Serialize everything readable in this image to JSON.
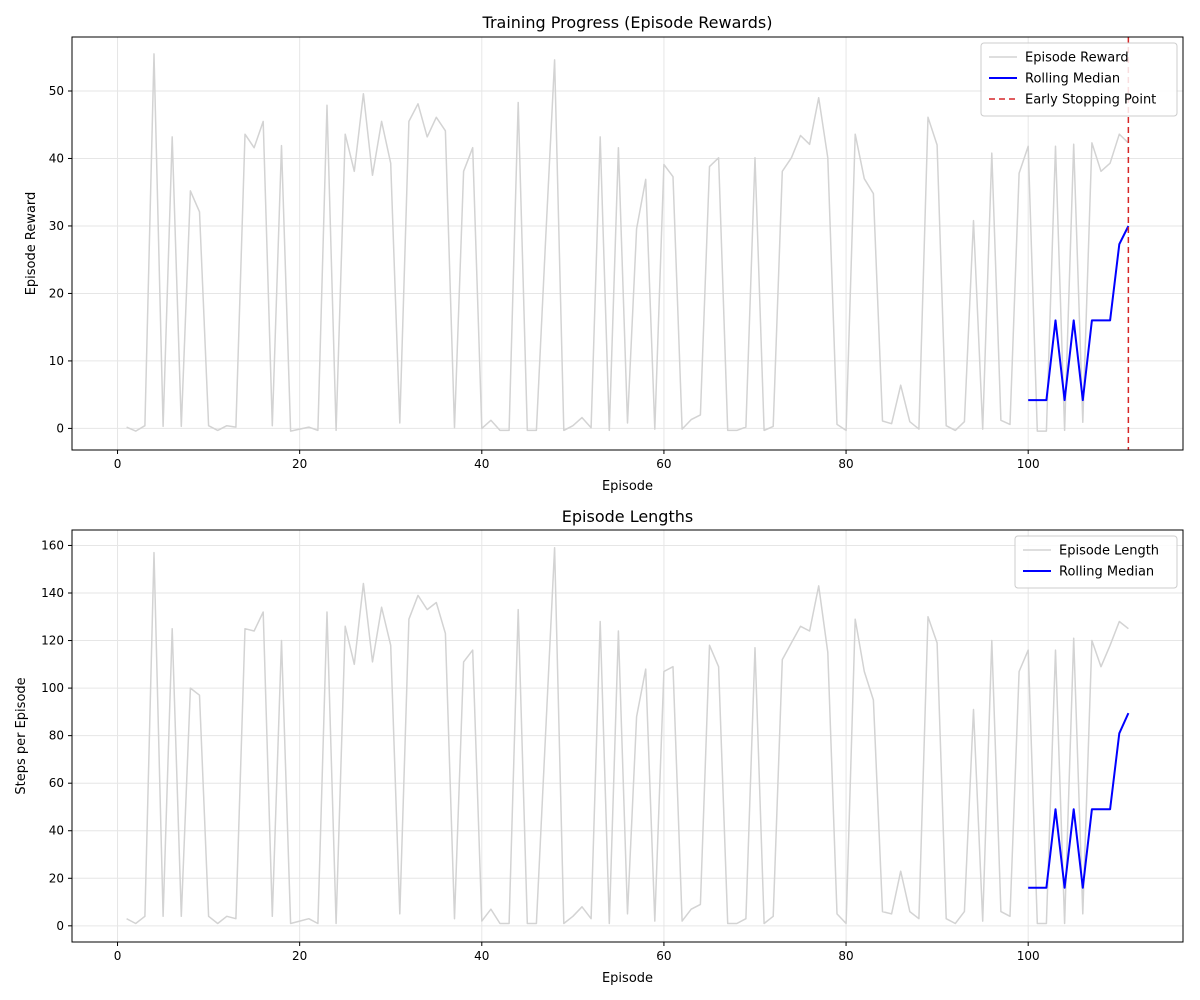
{
  "chart_data": [
    {
      "type": "line",
      "title": "Training Progress (Episode Rewards)",
      "xlabel": "Episode",
      "ylabel": "Episode Reward",
      "xlim": [
        -5,
        117
      ],
      "ylim": [
        -3.2,
        58
      ],
      "xticks": [
        0,
        20,
        40,
        60,
        80,
        100
      ],
      "yticks": [
        0,
        10,
        20,
        30,
        40,
        50
      ],
      "grid": true,
      "legend_position": "top-right",
      "series": [
        {
          "name": "Episode Reward",
          "color": "#d3d3d3",
          "x": [
            1,
            2,
            3,
            4,
            5,
            6,
            7,
            8,
            9,
            10,
            11,
            12,
            13,
            14,
            15,
            16,
            17,
            18,
            19,
            20,
            21,
            22,
            23,
            24,
            25,
            26,
            27,
            28,
            29,
            30,
            31,
            32,
            33,
            34,
            35,
            36,
            37,
            38,
            39,
            40,
            41,
            42,
            43,
            44,
            45,
            46,
            47,
            48,
            49,
            50,
            51,
            52,
            53,
            54,
            55,
            56,
            57,
            58,
            59,
            60,
            61,
            62,
            63,
            64,
            65,
            66,
            67,
            68,
            69,
            70,
            71,
            72,
            73,
            74,
            75,
            76,
            77,
            78,
            79,
            80,
            81,
            82,
            83,
            84,
            85,
            86,
            87,
            88,
            89,
            90,
            91,
            92,
            93,
            94,
            95,
            96,
            97,
            98,
            99,
            100,
            101,
            102,
            103,
            104,
            105,
            106,
            107,
            108,
            109,
            110,
            111
          ],
          "y": [
            0.2,
            -0.4,
            0.4,
            55.5,
            0.3,
            43.2,
            0.3,
            35.2,
            32.1,
            0.4,
            -0.3,
            0.4,
            0.2,
            43.6,
            41.6,
            45.5,
            0.4,
            41.9,
            -0.4,
            -0.1,
            0.2,
            -0.3,
            47.9,
            -0.3,
            43.6,
            38.1,
            49.6,
            37.5,
            45.5,
            39.3,
            0.8,
            45.5,
            48.1,
            43.2,
            46.1,
            44.1,
            0.1,
            38.1,
            41.6,
            0.0,
            1.2,
            -0.3,
            -0.3,
            48.3,
            -0.3,
            -0.3,
            27.6,
            54.6,
            -0.3,
            0.4,
            1.6,
            0.1,
            43.2,
            -0.3,
            41.6,
            0.8,
            29.6,
            36.9,
            -0.1,
            39.1,
            37.3,
            -0.1,
            1.3,
            2.0,
            38.8,
            40.1,
            -0.3,
            -0.3,
            0.2,
            40.1,
            -0.3,
            0.3,
            38.1,
            40.1,
            43.4,
            42.1,
            49.0,
            40.1,
            0.6,
            -0.3,
            43.6,
            37.0,
            34.8,
            1.1,
            0.7,
            6.4,
            1.0,
            -0.1,
            46.1,
            42.0,
            0.4,
            -0.3,
            1.0,
            30.8,
            -0.1,
            40.8,
            1.2,
            0.6,
            37.8,
            41.8,
            -0.4,
            -0.4,
            41.8,
            -0.3,
            42.1,
            0.9,
            42.3,
            38.1,
            39.3,
            43.6,
            42.3
          ]
        },
        {
          "name": "Rolling Median",
          "color": "#0000ff",
          "x": [
            100,
            101,
            102,
            103,
            104,
            105,
            106,
            107,
            108,
            109,
            110,
            111
          ],
          "y": [
            4.2,
            4.2,
            4.2,
            16.0,
            4.2,
            16.0,
            4.2,
            16.0,
            16.0,
            16.0,
            27.3,
            30.0
          ]
        }
      ],
      "vlines": [
        {
          "name": "Early Stopping Point",
          "x": 111,
          "color": "#d62728",
          "dashed": true
        }
      ]
    },
    {
      "type": "line",
      "title": "Episode Lengths",
      "xlabel": "Episode",
      "ylabel": "Steps per Episode",
      "xlim": [
        -5,
        117
      ],
      "ylim": [
        -6.8,
        166.5
      ],
      "xticks": [
        0,
        20,
        40,
        60,
        80,
        100
      ],
      "yticks": [
        0,
        20,
        40,
        60,
        80,
        100,
        120,
        140,
        160
      ],
      "grid": true,
      "legend_position": "top-right",
      "series": [
        {
          "name": "Episode Length",
          "color": "#d3d3d3",
          "x": [
            1,
            2,
            3,
            4,
            5,
            6,
            7,
            8,
            9,
            10,
            11,
            12,
            13,
            14,
            15,
            16,
            17,
            18,
            19,
            20,
            21,
            22,
            23,
            24,
            25,
            26,
            27,
            28,
            29,
            30,
            31,
            32,
            33,
            34,
            35,
            36,
            37,
            38,
            39,
            40,
            41,
            42,
            43,
            44,
            45,
            46,
            47,
            48,
            49,
            50,
            51,
            52,
            53,
            54,
            55,
            56,
            57,
            58,
            59,
            60,
            61,
            62,
            63,
            64,
            65,
            66,
            67,
            68,
            69,
            70,
            71,
            72,
            73,
            74,
            75,
            76,
            77,
            78,
            79,
            80,
            81,
            82,
            83,
            84,
            85,
            86,
            87,
            88,
            89,
            90,
            91,
            92,
            93,
            94,
            95,
            96,
            97,
            98,
            99,
            100,
            101,
            102,
            103,
            104,
            105,
            106,
            107,
            108,
            109,
            110,
            111
          ],
          "y": [
            3,
            1,
            4,
            157,
            4,
            125,
            4,
            100,
            97,
            4,
            1,
            4,
            3,
            125,
            124,
            132,
            4,
            120,
            1,
            2,
            3,
            1,
            132,
            1,
            126,
            110,
            144,
            111,
            134,
            118,
            5,
            129,
            139,
            133,
            136,
            123,
            3,
            111,
            116,
            2,
            7,
            1,
            1,
            133,
            1,
            1,
            80,
            159,
            1,
            4,
            8,
            3,
            128,
            1,
            124,
            5,
            88,
            108,
            2,
            107,
            109,
            2,
            7,
            9,
            118,
            109,
            1,
            1,
            3,
            117,
            1,
            4,
            112,
            119,
            126,
            124,
            143,
            115,
            5,
            1,
            129,
            107,
            95,
            6,
            5,
            23,
            6,
            3,
            130,
            119,
            3,
            1,
            6,
            91,
            2,
            120,
            6,
            4,
            107,
            116,
            1,
            1,
            116,
            1,
            121,
            5,
            120,
            109,
            118,
            128,
            125
          ]
        },
        {
          "name": "Rolling Median",
          "color": "#0000ff",
          "x": [
            100,
            101,
            102,
            103,
            104,
            105,
            106,
            107,
            108,
            109,
            110,
            111
          ],
          "y": [
            16,
            16,
            16,
            49,
            16,
            49,
            16,
            49,
            49,
            49,
            81,
            89.5
          ]
        }
      ],
      "vlines": []
    }
  ]
}
